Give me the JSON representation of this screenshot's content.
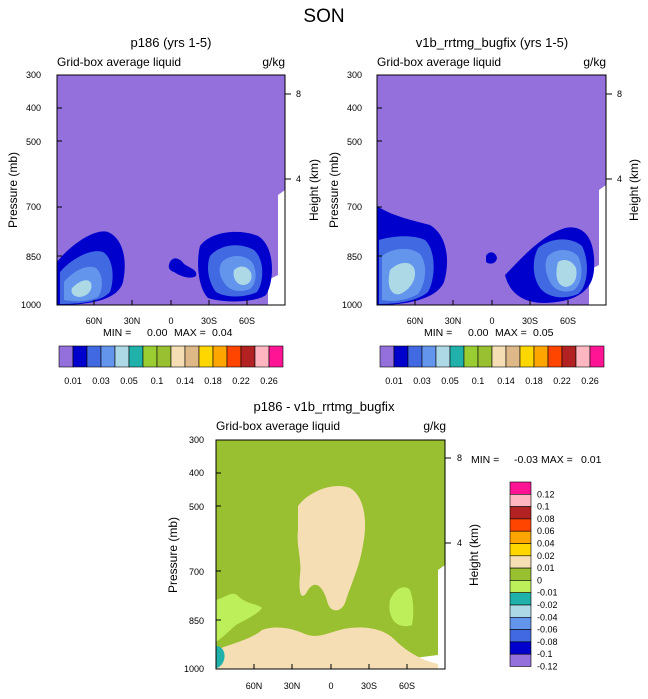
{
  "page_title": "SON",
  "colors": {
    "plot_bg_top": "#9370db",
    "plot_bg_diff": "#99c031",
    "blank": "#ffffff"
  },
  "chart_data": [
    {
      "type": "heatmap",
      "title": "p186 (yrs 1-5)",
      "subtitle_left": "Grid-box average liquid",
      "subtitle_right": "g/kg",
      "ylabel": "Pressure (mb)",
      "ylabel_right": "Height (km)",
      "x_ticks": [
        "60N",
        "30N",
        "0",
        "30S",
        "60S"
      ],
      "y_ticks": [
        "300",
        "400",
        "500",
        "700",
        "850",
        "1000"
      ],
      "y_right_ticks": [
        "8",
        "4"
      ],
      "min_label": "MIN =",
      "min_value": "0.00",
      "max_label": "MAX =",
      "max_value": "0.04",
      "background_level": "0.01"
    },
    {
      "type": "heatmap",
      "title": "v1b_rrtmg_bugfix (yrs 1-5)",
      "subtitle_left": "Grid-box average liquid",
      "subtitle_right": "g/kg",
      "ylabel": "Pressure (mb)",
      "ylabel_right": "Height (km)",
      "x_ticks": [
        "60N",
        "30N",
        "0",
        "30S",
        "60S"
      ],
      "y_ticks": [
        "300",
        "400",
        "500",
        "700",
        "850",
        "1000"
      ],
      "y_right_ticks": [
        "8",
        "4"
      ],
      "min_label": "MIN =",
      "min_value": "0.00",
      "max_label": "MAX =",
      "max_value": "0.05",
      "background_level": "0.01"
    },
    {
      "type": "heatmap",
      "title": "p186 - v1b_rrtmg_bugfix",
      "subtitle_left": "Grid-box average liquid",
      "subtitle_right": "g/kg",
      "ylabel": "Pressure (mb)",
      "ylabel_right": "Height (km)",
      "x_ticks": [
        "60N",
        "30N",
        "0",
        "30S",
        "60S"
      ],
      "y_ticks": [
        "300",
        "400",
        "500",
        "700",
        "850",
        "1000"
      ],
      "y_right_ticks": [
        "8",
        "4"
      ],
      "min_label": "MIN =",
      "min_value": "-0.03",
      "max_label": "MAX =",
      "max_value": "0.01",
      "background_level": "-0.01"
    }
  ],
  "top_colorbar": {
    "colors": [
      "#9370db",
      "#0000cd",
      "#4169e1",
      "#6495ed",
      "#add8e6",
      "#20b2aa",
      "#9acd32",
      "#99c031",
      "#f5deb3",
      "#deb887",
      "#ffd700",
      "#ffa500",
      "#ff4500",
      "#b22222",
      "#ffb6c1",
      "#ff1493"
    ],
    "labels": [
      "0.01",
      "0.03",
      "0.05",
      "0.1",
      "0.14",
      "0.18",
      "0.22",
      "0.26"
    ]
  },
  "diff_colorbar": {
    "colors": [
      "#ff1493",
      "#ffb6c1",
      "#b22222",
      "#ff4500",
      "#ffa500",
      "#ffd700",
      "#f5deb3",
      "#99c031",
      "#bdef5a",
      "#20b2aa",
      "#add8e6",
      "#6495ed",
      "#4169e1",
      "#0000cd",
      "#9370db"
    ],
    "labels": [
      "0.12",
      "0.1",
      "0.08",
      "0.06",
      "0.04",
      "0.02",
      "0.01",
      "0",
      "-0.01",
      "-0.02",
      "-0.04",
      "-0.06",
      "-0.08",
      "-0.1",
      "-0.12"
    ]
  }
}
